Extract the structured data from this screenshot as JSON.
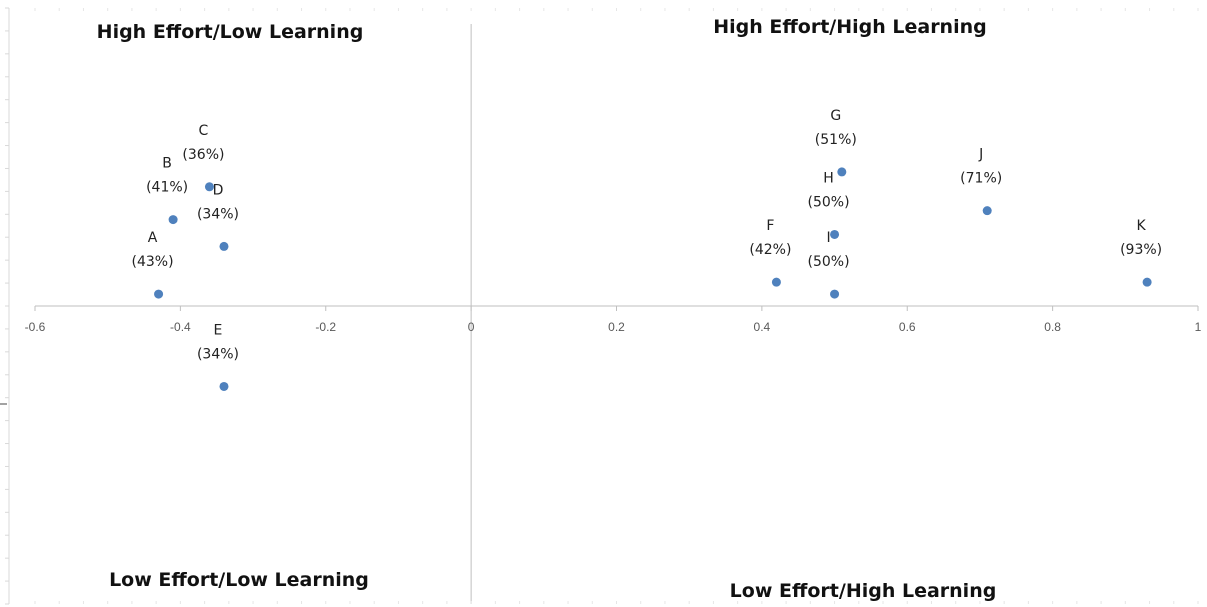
{
  "chart_data": {
    "type": "scatter",
    "title": "",
    "xlabel": "",
    "ylabel": "",
    "xlim": [
      -0.6,
      1
    ],
    "ylim": [
      -1,
      1
    ],
    "grid": false,
    "legend": "none",
    "x_ticks": [
      "-0.6",
      "-0.4",
      "-0.2",
      "0",
      "0.2",
      "0.4",
      "0.6",
      "0.8",
      "1"
    ],
    "x_tick_values": [
      -0.6,
      -0.4,
      -0.2,
      0,
      0.2,
      0.4,
      0.6,
      0.8,
      1
    ],
    "quadrant_labels": {
      "top_left": "High Effort/Low Learning",
      "top_right": "High Effort/High Learning",
      "bottom_left": "Low Effort/Low Learning",
      "bottom_right": "Low Effort/High Learning"
    },
    "points": [
      {
        "name": "A",
        "pct": "(43%)",
        "x": -0.43,
        "y": 0.04
      },
      {
        "name": "B",
        "pct": "(41%)",
        "x": -0.41,
        "y": 0.29
      },
      {
        "name": "C",
        "pct": "(36%)",
        "x": -0.36,
        "y": 0.4
      },
      {
        "name": "D",
        "pct": "(34%)",
        "x": -0.34,
        "y": 0.2
      },
      {
        "name": "E",
        "pct": "(34%)",
        "x": -0.34,
        "y": -0.27
      },
      {
        "name": "F",
        "pct": "(42%)",
        "x": 0.42,
        "y": 0.08
      },
      {
        "name": "G",
        "pct": "(51%)",
        "x": 0.51,
        "y": 0.45
      },
      {
        "name": "H",
        "pct": "(50%)",
        "x": 0.5,
        "y": 0.24
      },
      {
        "name": "I",
        "pct": "(50%)",
        "x": 0.5,
        "y": 0.04
      },
      {
        "name": "J",
        "pct": "(71%)",
        "x": 0.71,
        "y": 0.32
      },
      {
        "name": "K",
        "pct": "(93%)",
        "x": 0.93,
        "y": 0.08
      }
    ],
    "colors": {
      "marker": "#4f81bd",
      "axis": "#bfbfbf"
    }
  }
}
